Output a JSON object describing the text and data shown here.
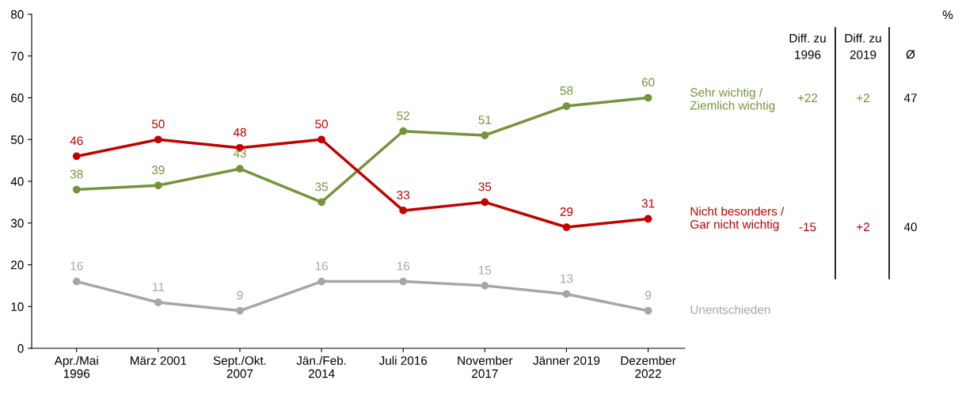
{
  "chart_data": {
    "type": "line",
    "categories": [
      "Apr./Mai\n1996",
      "März 2001",
      "Sept./Okt.\n2007",
      "Jän./Feb.\n2014",
      "Juli 2016",
      "November\n2017",
      "Jänner 2019",
      "Dezember\n2022"
    ],
    "series": [
      {
        "name": "Sehr wichtig /\nZiemlich wichtig",
        "color": "#76933c",
        "values": [
          38,
          39,
          43,
          35,
          52,
          51,
          58,
          60
        ]
      },
      {
        "name": "Nicht besonders /\nGar nicht wichtig",
        "color": "#c00000",
        "values": [
          46,
          50,
          48,
          50,
          33,
          35,
          29,
          31
        ]
      },
      {
        "name": "Unentschieden",
        "color": "#a6a6a6",
        "values": [
          16,
          11,
          9,
          16,
          16,
          15,
          13,
          9
        ]
      }
    ],
    "ylim": [
      0,
      80
    ],
    "yticks": [
      0,
      10,
      20,
      30,
      40,
      50,
      60,
      70,
      80
    ],
    "data_labels": true,
    "grid": false,
    "legend": false,
    "marker": "circle",
    "line_style": "solid",
    "annotations": [
      "%",
      "Diff. zu\n1996",
      "Diff. zu\n2019",
      "Ø",
      "+22",
      "+2",
      "47",
      "-15",
      "+2",
      "40"
    ]
  }
}
